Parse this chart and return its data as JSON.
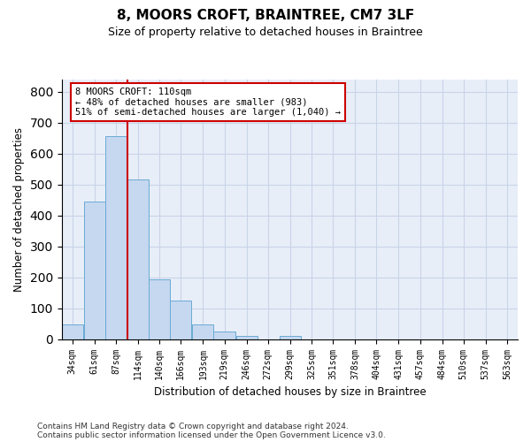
{
  "title": "8, MOORS CROFT, BRAINTREE, CM7 3LF",
  "subtitle": "Size of property relative to detached houses in Braintree",
  "xlabel": "Distribution of detached houses by size in Braintree",
  "ylabel": "Number of detached properties",
  "bin_labels": [
    "34sqm",
    "61sqm",
    "87sqm",
    "114sqm",
    "140sqm",
    "166sqm",
    "193sqm",
    "219sqm",
    "246sqm",
    "272sqm",
    "299sqm",
    "325sqm",
    "351sqm",
    "378sqm",
    "404sqm",
    "431sqm",
    "457sqm",
    "484sqm",
    "510sqm",
    "537sqm",
    "563sqm"
  ],
  "bar_values": [
    47,
    444,
    657,
    516,
    193,
    125,
    47,
    24,
    10,
    0,
    10,
    0,
    0,
    0,
    0,
    0,
    0,
    0,
    0,
    0,
    0
  ],
  "bar_color": "#c5d8f0",
  "bar_edgecolor": "#6aaad4",
  "vline_x_bin_index": 3,
  "annotation_box_text": "8 MOORS CROFT: 110sqm\n← 48% of detached houses are smaller (983)\n51% of semi-detached houses are larger (1,040) →",
  "annotation_box_color": "#cc0000",
  "vline_color": "#cc0000",
  "ylim": [
    0,
    840
  ],
  "yticks": [
    0,
    100,
    200,
    300,
    400,
    500,
    600,
    700,
    800
  ],
  "grid_color": "#c8d4e8",
  "background_color": "#e8eef8",
  "footer_text": "Contains HM Land Registry data © Crown copyright and database right 2024.\nContains public sector information licensed under the Open Government Licence v3.0.",
  "bin_starts": [
    34,
    61,
    87,
    114,
    140,
    166,
    193,
    219,
    246,
    272,
    299,
    325,
    351,
    378,
    404,
    431,
    457,
    484,
    510,
    537,
    563
  ],
  "bin_width": 26
}
